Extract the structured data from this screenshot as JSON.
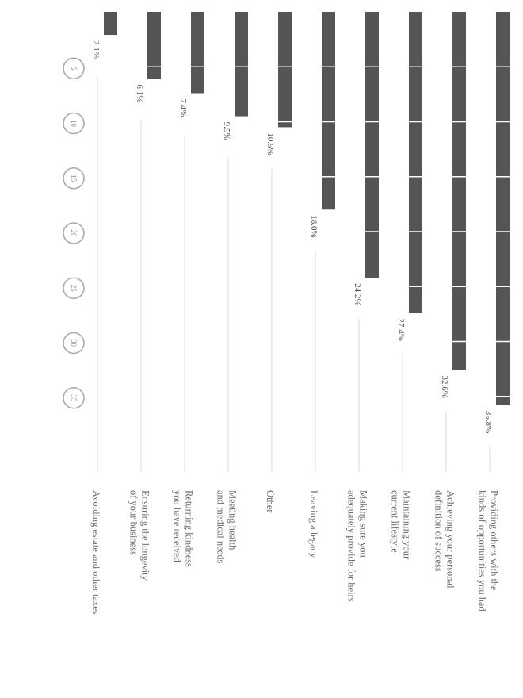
{
  "chart_data": {
    "type": "bar",
    "orientation": "horizontal",
    "rotation": "page rotated 90 degrees clockwise",
    "categories": [
      [
        "Providing others with the",
        "kinds of opportunities you had"
      ],
      [
        "Achieving your personal",
        "definition of success"
      ],
      [
        "Maintaining your",
        "current lifestyle"
      ],
      [
        "Making sure you",
        "adequately provide for heirs"
      ],
      [
        "Leaving a legacy"
      ],
      [
        "Other"
      ],
      [
        "Meeting health",
        "and medical needs"
      ],
      [
        "Returning kindness",
        "you have received"
      ],
      [
        "Ensuring the longevity",
        "of your business"
      ],
      [
        "Avoiding estate and other taxes"
      ]
    ],
    "values": [
      35.8,
      32.6,
      27.4,
      24.2,
      18.0,
      10.5,
      9.5,
      7.4,
      6.1,
      2.1
    ],
    "value_labels": [
      "35.8%",
      "32.6%",
      "27.4%",
      "24.2%",
      "18.0%",
      "10.5%",
      "9.5%",
      "7.4%",
      "6.1%",
      "2.1%"
    ],
    "axis_ticks": [
      5,
      10,
      15,
      20,
      25,
      30,
      35
    ],
    "xlim": [
      0,
      35
    ],
    "segment_step": 5,
    "bar_color": "#555555",
    "divider_color": "#ffffff",
    "leader_color": "#d8d8d8",
    "tick_circle_color": "#aaaaaa",
    "grid": false,
    "legend": "none"
  }
}
